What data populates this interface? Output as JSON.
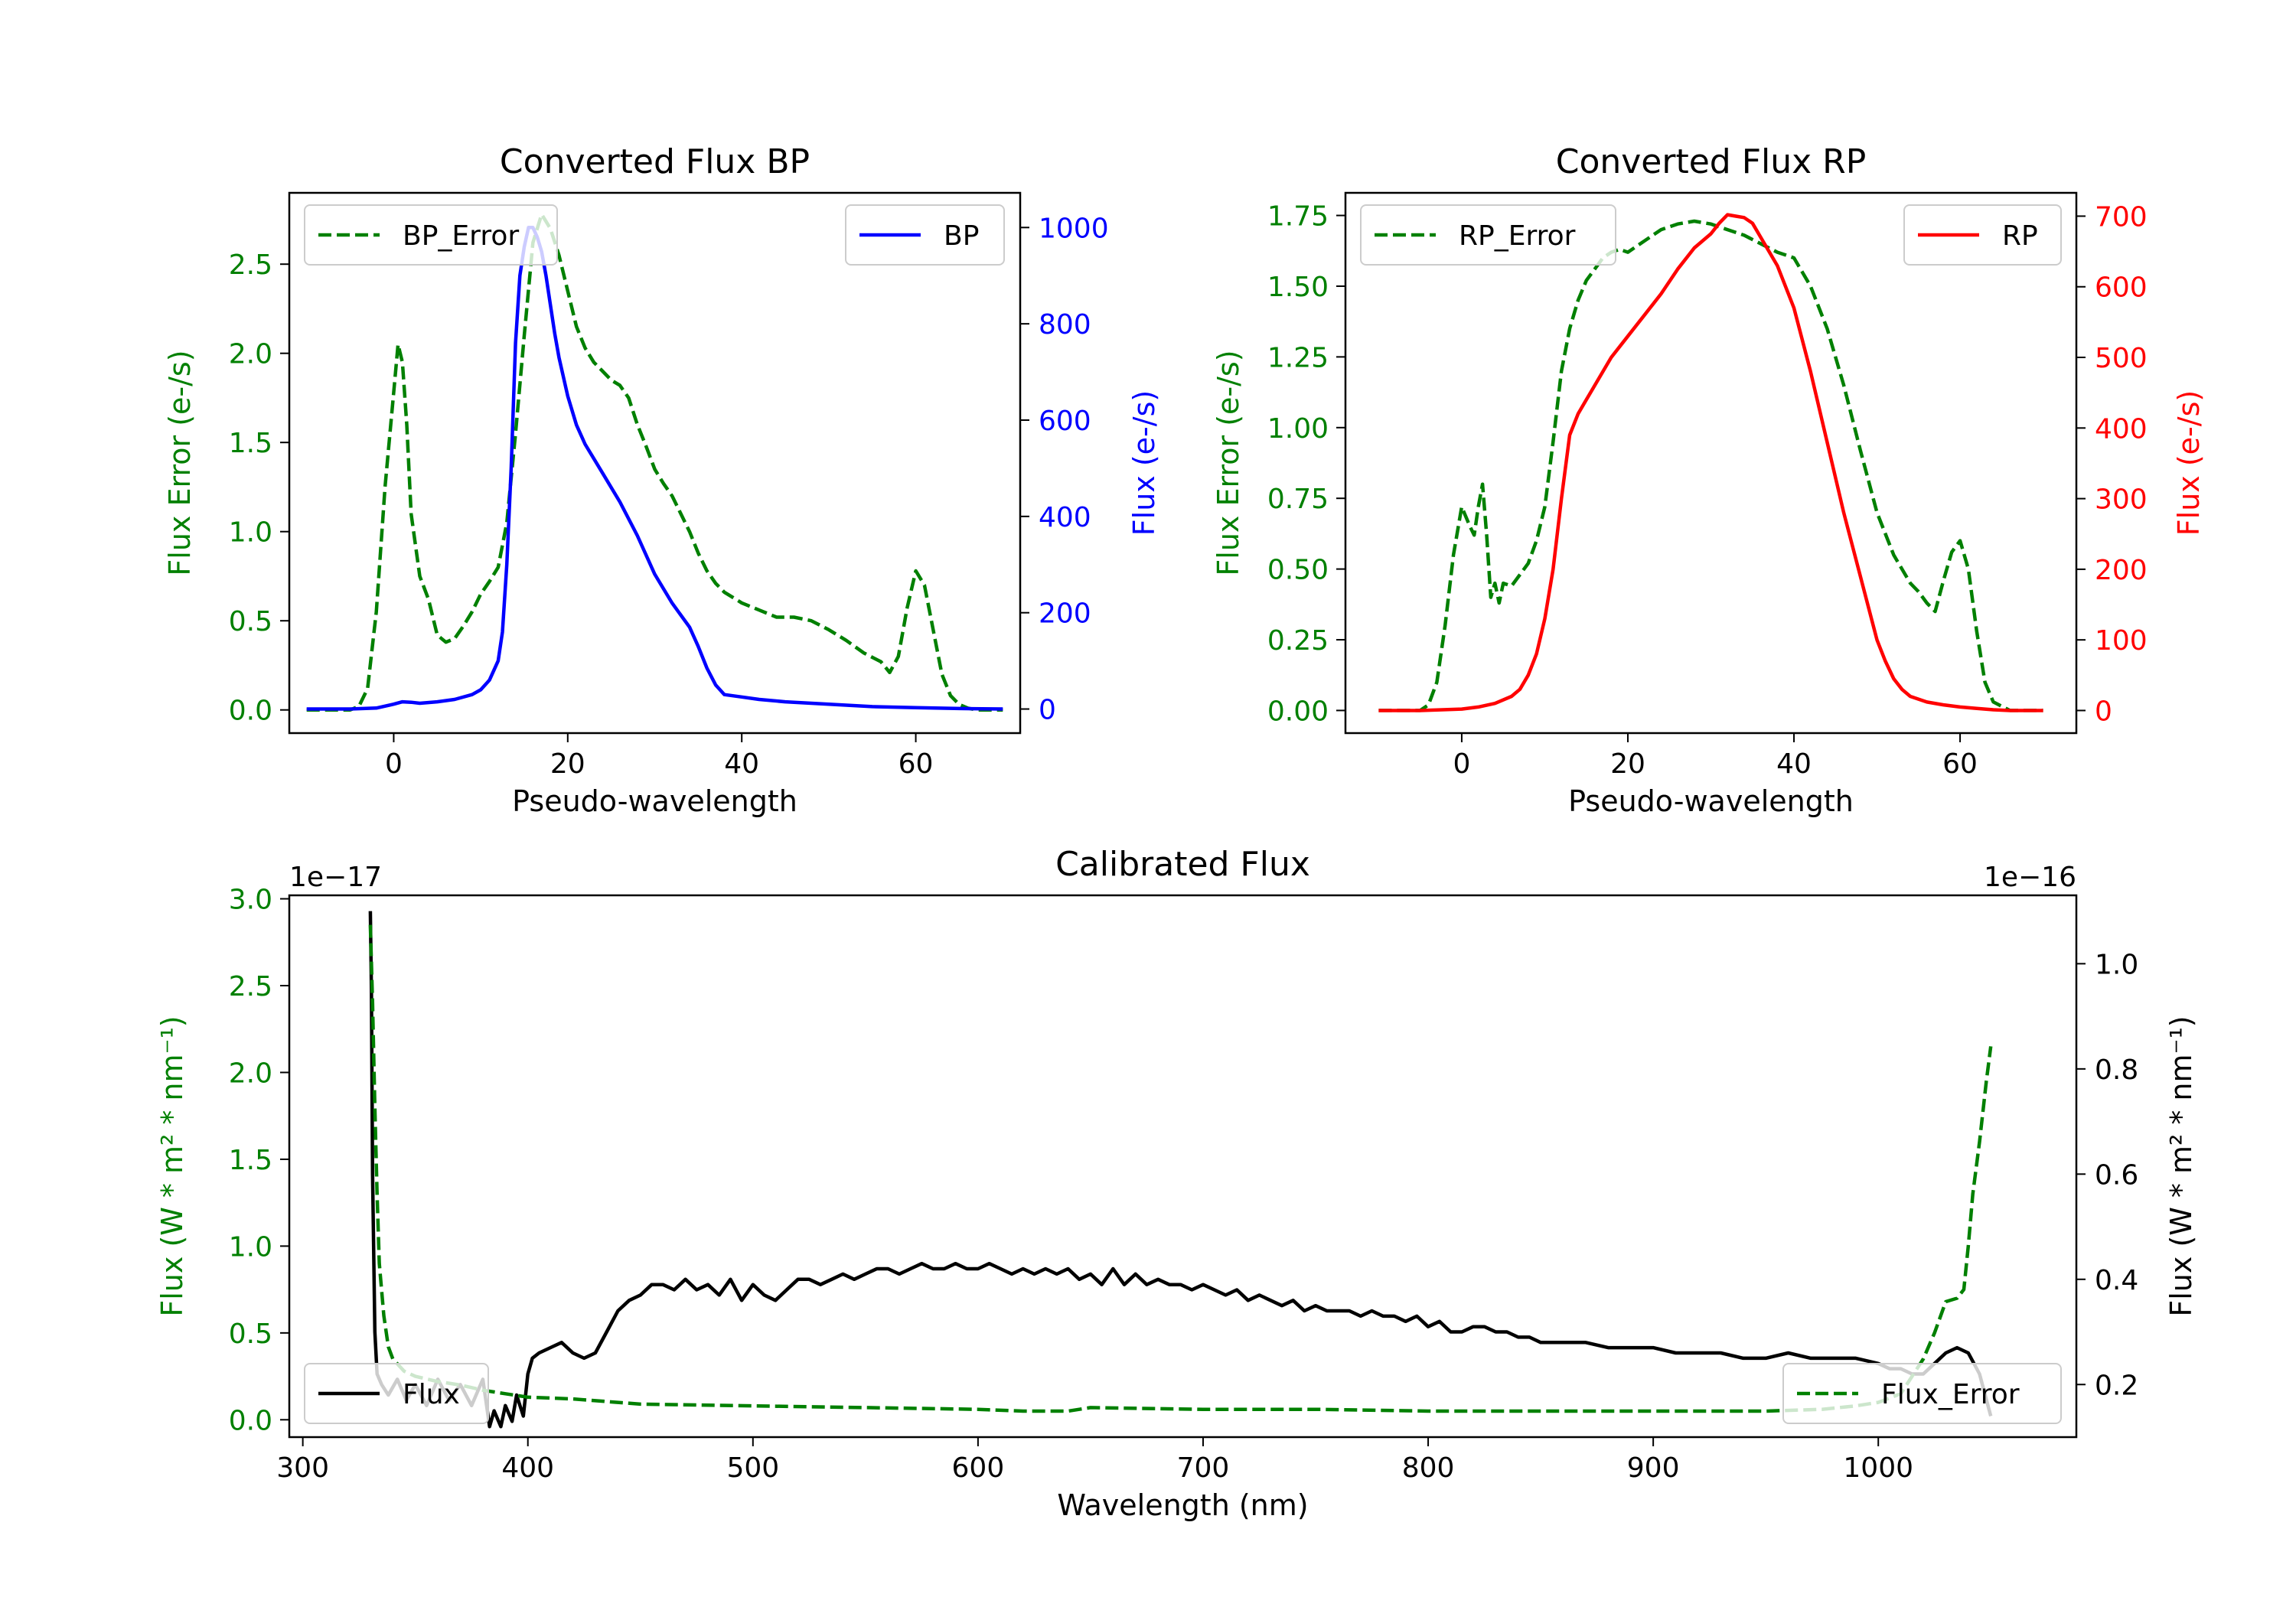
{
  "colors": {
    "green": "#008000",
    "blue": "#0000ff",
    "red": "#ff0000",
    "black": "#000000"
  },
  "chart_data": [
    {
      "type": "line",
      "title": "Converted Flux BP",
      "xlabel": "Pseudo-wavelength",
      "ylabel_left": "Flux Error (e-/s)",
      "ylabel_right": "Flux (e-/s)",
      "xlim": [
        -12,
        72
      ],
      "ylim_left": [
        -0.13,
        2.9
      ],
      "ylim_right": [
        -50,
        1072
      ],
      "xticks": [
        0,
        20,
        40,
        60
      ],
      "yticks_left": [
        0.0,
        0.5,
        1.0,
        1.5,
        2.0,
        2.5
      ],
      "yticks_right": [
        0,
        200,
        400,
        600,
        800,
        1000
      ],
      "series": [
        {
          "name": "BP_Error",
          "axis": "left",
          "style": "dashed",
          "color": "#008000",
          "x": [
            -10,
            -5,
            -4,
            -3,
            -2,
            -1,
            0,
            0.5,
            1,
            1.5,
            2,
            3,
            4,
            5,
            6,
            7,
            8,
            9,
            10,
            11,
            12,
            13,
            14,
            15,
            16,
            17,
            18,
            19,
            20,
            21,
            22,
            23,
            24,
            25,
            26,
            27,
            28,
            29,
            30,
            31,
            32,
            33,
            34,
            35,
            36,
            37,
            38,
            40,
            42,
            44,
            46,
            48,
            50,
            52,
            54,
            56,
            57,
            58,
            59,
            60,
            61,
            62,
            63,
            64,
            65,
            66,
            67,
            68,
            70
          ],
          "y": [
            0,
            0,
            0.02,
            0.12,
            0.55,
            1.25,
            1.78,
            2.05,
            1.95,
            1.6,
            1.1,
            0.75,
            0.62,
            0.42,
            0.38,
            0.4,
            0.47,
            0.55,
            0.65,
            0.72,
            0.8,
            1.05,
            1.55,
            2.1,
            2.62,
            2.78,
            2.7,
            2.55,
            2.35,
            2.15,
            2.03,
            1.95,
            1.9,
            1.85,
            1.82,
            1.75,
            1.6,
            1.48,
            1.35,
            1.27,
            1.2,
            1.1,
            1.0,
            0.88,
            0.78,
            0.71,
            0.66,
            0.6,
            0.56,
            0.52,
            0.52,
            0.5,
            0.45,
            0.39,
            0.32,
            0.27,
            0.21,
            0.3,
            0.57,
            0.78,
            0.7,
            0.45,
            0.2,
            0.08,
            0.03,
            0.01,
            0,
            0,
            0
          ]
        },
        {
          "name": "BP",
          "axis": "right",
          "style": "solid",
          "color": "#0000ff",
          "x": [
            -10,
            -5,
            -2,
            0,
            1,
            2,
            3,
            5,
            7,
            9,
            10,
            11,
            12,
            12.5,
            13,
            13.5,
            14,
            14.5,
            15,
            15.5,
            16,
            16.5,
            17,
            17.5,
            18,
            18.5,
            19,
            20,
            21,
            22,
            23,
            24,
            26,
            28,
            30,
            32,
            34,
            35,
            36,
            37,
            38,
            40,
            42,
            45,
            50,
            55,
            60,
            65,
            70
          ],
          "y": [
            0,
            0,
            2,
            10,
            15,
            14,
            12,
            15,
            20,
            30,
            40,
            60,
            100,
            160,
            300,
            500,
            760,
            900,
            960,
            1000,
            1000,
            980,
            950,
            900,
            840,
            780,
            730,
            650,
            590,
            550,
            520,
            490,
            430,
            360,
            280,
            220,
            170,
            130,
            85,
            50,
            30,
            25,
            20,
            15,
            10,
            5,
            3,
            1,
            0
          ]
        }
      ],
      "legend": [
        "BP_Error",
        "BP"
      ]
    },
    {
      "type": "line",
      "title": "Converted Flux RP",
      "xlabel": "Pseudo-wavelength",
      "ylabel_left": "Flux Error (e-/s)",
      "ylabel_right": "Flux (e-/s)",
      "xlim": [
        -14,
        74
      ],
      "ylim_left": [
        -0.08,
        1.83
      ],
      "ylim_right": [
        -32,
        733
      ],
      "xticks": [
        0,
        20,
        40,
        60
      ],
      "yticks_left": [
        0.0,
        0.25,
        0.5,
        0.75,
        1.0,
        1.25,
        1.5,
        1.75
      ],
      "yticks_right": [
        0,
        100,
        200,
        300,
        400,
        500,
        600,
        700
      ],
      "series": [
        {
          "name": "RP_Error",
          "axis": "left",
          "style": "dashed",
          "color": "#008000",
          "x": [
            -10,
            -5,
            -4,
            -3,
            -2,
            -1,
            0,
            1,
            1.5,
            2,
            2.5,
            3,
            3.5,
            4,
            4.5,
            5,
            6,
            7,
            8,
            9,
            10,
            11,
            12,
            13,
            14,
            15,
            16,
            17,
            18,
            19,
            20,
            22,
            24,
            26,
            28,
            30,
            32,
            34,
            36,
            38,
            40,
            42,
            44,
            46,
            48,
            50,
            52,
            54,
            55,
            56,
            57,
            58,
            59,
            60,
            61,
            62,
            63,
            64,
            66,
            70
          ],
          "y": [
            0,
            0,
            0.02,
            0.1,
            0.3,
            0.55,
            0.72,
            0.65,
            0.62,
            0.72,
            0.8,
            0.62,
            0.4,
            0.45,
            0.38,
            0.45,
            0.44,
            0.48,
            0.52,
            0.6,
            0.72,
            0.95,
            1.2,
            1.35,
            1.45,
            1.52,
            1.56,
            1.6,
            1.62,
            1.63,
            1.62,
            1.66,
            1.7,
            1.72,
            1.73,
            1.72,
            1.7,
            1.68,
            1.65,
            1.62,
            1.6,
            1.5,
            1.35,
            1.15,
            0.92,
            0.7,
            0.55,
            0.45,
            0.42,
            0.38,
            0.35,
            0.46,
            0.56,
            0.6,
            0.5,
            0.28,
            0.1,
            0.03,
            0,
            0
          ]
        },
        {
          "name": "RP",
          "axis": "right",
          "style": "solid",
          "color": "#ff0000",
          "x": [
            -10,
            -5,
            0,
            2,
            4,
            6,
            7,
            8,
            9,
            10,
            11,
            12,
            13,
            14,
            15,
            16,
            17,
            18,
            20,
            22,
            24,
            26,
            28,
            30,
            31,
            32,
            33,
            34,
            35,
            36,
            38,
            40,
            42,
            44,
            46,
            48,
            50,
            51,
            52,
            53,
            54,
            56,
            58,
            60,
            62,
            64,
            66,
            70
          ],
          "y": [
            0,
            0,
            2,
            5,
            10,
            20,
            30,
            50,
            80,
            130,
            200,
            300,
            390,
            420,
            440,
            460,
            480,
            500,
            530,
            560,
            590,
            625,
            655,
            675,
            690,
            702,
            700,
            698,
            690,
            670,
            630,
            570,
            480,
            380,
            280,
            190,
            100,
            70,
            45,
            30,
            20,
            12,
            8,
            5,
            3,
            1,
            0,
            0
          ]
        }
      ],
      "legend": [
        "RP_Error",
        "RP"
      ]
    },
    {
      "type": "line",
      "title": "Calibrated Flux",
      "xlabel": "Wavelength (nm)",
      "ylabel_left": "Flux (W * m² * nm⁻¹)",
      "ylabel_right": "Flux (W * m² * nm⁻¹)",
      "offset_left": "1e−17",
      "offset_right": "1e−16",
      "xlim": [
        294,
        1088
      ],
      "ylim_left": [
        -0.1,
        3.02
      ],
      "ylim_right": [
        0.1,
        1.13
      ],
      "xticks": [
        300,
        400,
        500,
        600,
        700,
        800,
        900,
        1000
      ],
      "yticks_left": [
        0.0,
        0.5,
        1.0,
        1.5,
        2.0,
        2.5,
        3.0
      ],
      "yticks_right": [
        0.2,
        0.4,
        0.6,
        0.8,
        1.0
      ],
      "series": [
        {
          "name": "Flux",
          "axis": "right",
          "style": "solid",
          "color": "#000000",
          "x": [
            330,
            330.5,
            331,
            332,
            333,
            335,
            338,
            342,
            346,
            350,
            355,
            360,
            365,
            370,
            375,
            380,
            383,
            385,
            388,
            390,
            393,
            395,
            398,
            400,
            402,
            405,
            410,
            415,
            420,
            425,
            430,
            435,
            440,
            445,
            450,
            455,
            460,
            465,
            470,
            475,
            480,
            485,
            490,
            495,
            500,
            505,
            510,
            515,
            520,
            525,
            530,
            535,
            540,
            545,
            550,
            555,
            560,
            565,
            570,
            575,
            580,
            585,
            590,
            595,
            600,
            605,
            610,
            615,
            620,
            625,
            630,
            635,
            640,
            645,
            650,
            655,
            660,
            665,
            670,
            675,
            680,
            685,
            690,
            695,
            700,
            705,
            710,
            715,
            720,
            725,
            730,
            735,
            740,
            745,
            750,
            755,
            760,
            765,
            770,
            775,
            780,
            785,
            790,
            795,
            800,
            805,
            810,
            815,
            820,
            825,
            830,
            835,
            840,
            845,
            850,
            855,
            860,
            870,
            880,
            890,
            900,
            910,
            920,
            930,
            940,
            950,
            960,
            970,
            980,
            990,
            1000,
            1005,
            1010,
            1015,
            1020,
            1025,
            1030,
            1035,
            1040,
            1045,
            1050
          ],
          "y": [
            1.1,
            0.95,
            0.6,
            0.3,
            0.22,
            0.2,
            0.18,
            0.21,
            0.17,
            0.2,
            0.16,
            0.21,
            0.17,
            0.2,
            0.16,
            0.21,
            0.12,
            0.15,
            0.12,
            0.16,
            0.13,
            0.18,
            0.14,
            0.22,
            0.25,
            0.26,
            0.27,
            0.28,
            0.26,
            0.25,
            0.26,
            0.3,
            0.34,
            0.36,
            0.37,
            0.39,
            0.39,
            0.38,
            0.4,
            0.38,
            0.39,
            0.37,
            0.4,
            0.36,
            0.39,
            0.37,
            0.36,
            0.38,
            0.4,
            0.4,
            0.39,
            0.4,
            0.41,
            0.4,
            0.41,
            0.42,
            0.42,
            0.41,
            0.42,
            0.43,
            0.42,
            0.42,
            0.43,
            0.42,
            0.42,
            0.43,
            0.42,
            0.41,
            0.42,
            0.41,
            0.42,
            0.41,
            0.42,
            0.4,
            0.41,
            0.39,
            0.42,
            0.39,
            0.41,
            0.39,
            0.4,
            0.39,
            0.39,
            0.38,
            0.39,
            0.38,
            0.37,
            0.38,
            0.36,
            0.37,
            0.36,
            0.35,
            0.36,
            0.34,
            0.35,
            0.34,
            0.34,
            0.34,
            0.33,
            0.34,
            0.33,
            0.33,
            0.32,
            0.33,
            0.31,
            0.32,
            0.3,
            0.3,
            0.31,
            0.31,
            0.3,
            0.3,
            0.29,
            0.29,
            0.28,
            0.28,
            0.28,
            0.28,
            0.27,
            0.27,
            0.27,
            0.26,
            0.26,
            0.26,
            0.25,
            0.25,
            0.26,
            0.25,
            0.25,
            0.25,
            0.24,
            0.23,
            0.23,
            0.22,
            0.22,
            0.24,
            0.26,
            0.27,
            0.26,
            0.22,
            0.14
          ]
        },
        {
          "name": "Flux_Error",
          "axis": "left",
          "style": "dashed",
          "color": "#008000",
          "x": [
            330,
            331,
            332,
            333,
            334,
            336,
            338,
            340,
            345,
            350,
            360,
            370,
            380,
            390,
            400,
            420,
            450,
            500,
            550,
            600,
            620,
            640,
            650,
            700,
            750,
            800,
            850,
            900,
            950,
            975,
            990,
            1000,
            1010,
            1015,
            1020,
            1025,
            1030,
            1035,
            1038,
            1040,
            1042,
            1045,
            1048,
            1050
          ],
          "y": [
            2.85,
            2.4,
            1.8,
            1.3,
            0.9,
            0.6,
            0.42,
            0.35,
            0.28,
            0.25,
            0.22,
            0.2,
            0.17,
            0.15,
            0.13,
            0.12,
            0.09,
            0.08,
            0.07,
            0.06,
            0.05,
            0.05,
            0.07,
            0.06,
            0.06,
            0.05,
            0.05,
            0.05,
            0.05,
            0.06,
            0.08,
            0.1,
            0.15,
            0.25,
            0.35,
            0.5,
            0.68,
            0.7,
            0.75,
            1.0,
            1.3,
            1.6,
            1.95,
            2.15
          ]
        }
      ],
      "legend": [
        "Flux",
        "Flux_Error"
      ]
    }
  ]
}
